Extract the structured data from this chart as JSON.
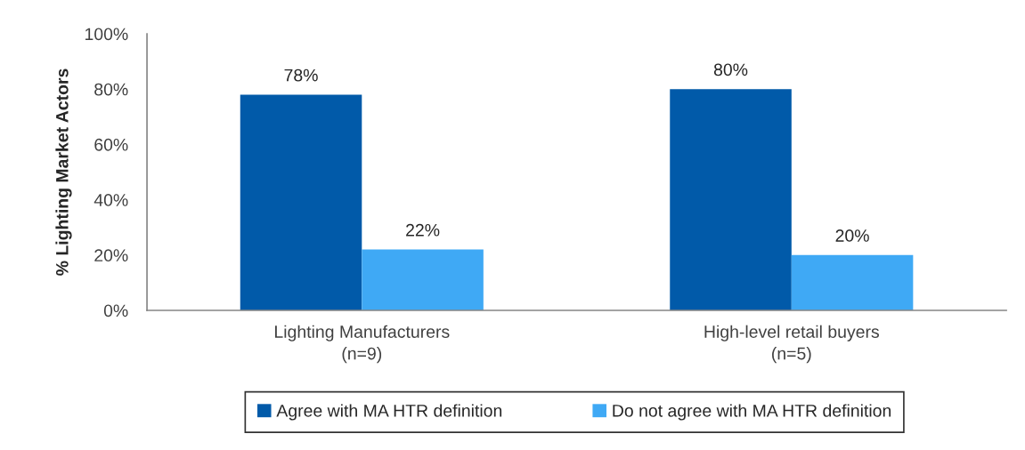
{
  "chart_data": {
    "type": "bar",
    "ylabel": "% Lighting Market Actors",
    "categories": [
      "Lighting Manufacturers\n(n=9)",
      "High-level retail buyers\n(n=5)"
    ],
    "series": [
      {
        "name": "Agree with MA HTR definition",
        "color": "#015aa9",
        "values": [
          78,
          80
        ],
        "value_labels": [
          "78%",
          "80%"
        ]
      },
      {
        "name": "Do not agree with MA HTR definition",
        "color": "#3fa9f5",
        "values": [
          22,
          20
        ],
        "value_labels": [
          "22%",
          "20%"
        ]
      }
    ],
    "ylim": [
      0,
      100
    ],
    "yticks": [
      {
        "value": 0,
        "label": "0%"
      },
      {
        "value": 20,
        "label": "20%"
      },
      {
        "value": 40,
        "label": "40%"
      },
      {
        "value": 60,
        "label": "60%"
      },
      {
        "value": 80,
        "label": "80%"
      },
      {
        "value": 100,
        "label": "100%"
      }
    ],
    "legend": "bottom"
  }
}
